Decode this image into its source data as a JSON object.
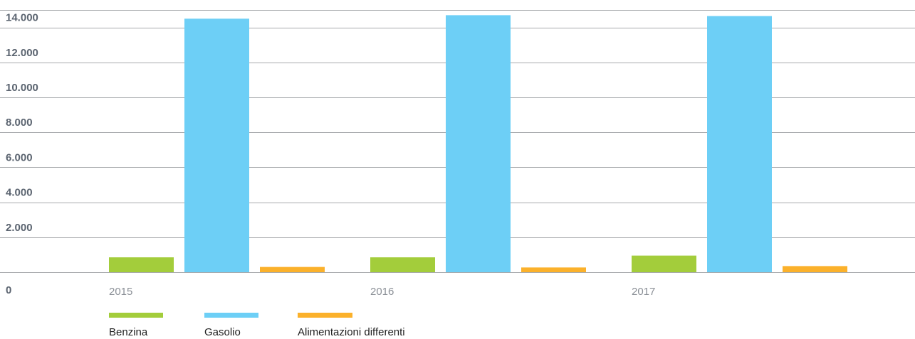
{
  "chart_data": {
    "type": "bar",
    "title": "",
    "xlabel": "",
    "ylabel": "",
    "categories": [
      "2015",
      "2016",
      "2017"
    ],
    "series": [
      {
        "name": "Benzina",
        "color": "#a3cd3b",
        "values": [
          850,
          850,
          950
        ]
      },
      {
        "name": "Gasolio",
        "color": "#6dcff6",
        "values": [
          14500,
          14700,
          14650
        ]
      },
      {
        "name": "Alimentazioni differenti",
        "color": "#fbb12b",
        "values": [
          300,
          270,
          350
        ]
      }
    ],
    "ylim": [
      0,
      15000
    ],
    "yticks": [
      {
        "value": 0,
        "label": "0"
      },
      {
        "value": 2000,
        "label": "2.000"
      },
      {
        "value": 4000,
        "label": "4.000"
      },
      {
        "value": 6000,
        "label": "6.000"
      },
      {
        "value": 8000,
        "label": "8.000"
      },
      {
        "value": 10000,
        "label": "10.000"
      },
      {
        "value": 12000,
        "label": "12.000"
      },
      {
        "value": 14000,
        "label": "14.000"
      }
    ],
    "grid": true,
    "legend_position": "bottom-left"
  }
}
